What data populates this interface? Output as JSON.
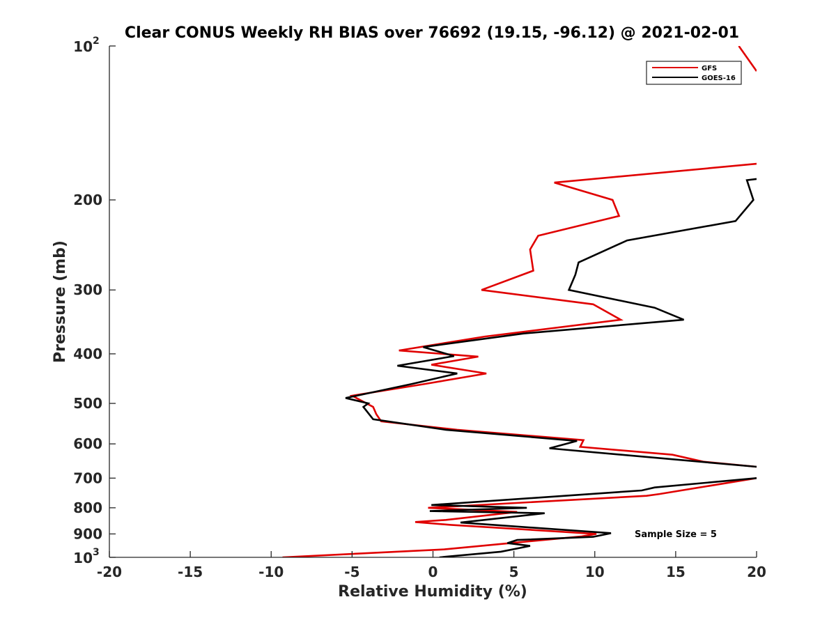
{
  "chart_data": {
    "type": "line",
    "title": "Clear CONUS Weekly RH BIAS over 76692 (19.15, -96.12) @ 2021-02-01",
    "xlabel": "Relative Humidity (%)",
    "ylabel": "Pressure (mb)",
    "xlim": [
      -20,
      20
    ],
    "ylim": [
      100,
      1000
    ],
    "yscale": "log",
    "y_reversed": true,
    "x_ticks": [
      -20,
      -15,
      -10,
      -5,
      0,
      5,
      10,
      15,
      20
    ],
    "x_tick_labels": [
      "-20",
      "-15",
      "-10",
      "-5",
      "0",
      "5",
      "10",
      "15",
      "20"
    ],
    "y_ticks": [
      200,
      300,
      400,
      500,
      600,
      700,
      800,
      900
    ],
    "y_tick_labels": [
      "200",
      "300",
      "400",
      "500",
      "600",
      "700",
      "800",
      "900"
    ],
    "y_pow_ticks": [
      {
        "value": 100,
        "base": "10",
        "exp": "2"
      },
      {
        "value": 1000,
        "base": "10",
        "exp": "3"
      }
    ],
    "grid": false,
    "legend_position": "top-right",
    "annotation": "Sample Size = 5",
    "series": [
      {
        "name": "GFS",
        "color": "#e00000",
        "segments": [
          [
            [
              18.9,
              100
            ],
            [
              20.0,
              112
            ]
          ],
          [
            [
              20.0,
              170
            ],
            [
              7.5,
              185
            ],
            [
              11.1,
              200
            ],
            [
              11.5,
              215
            ],
            [
              6.5,
              235
            ],
            [
              6.0,
              250
            ],
            [
              6.2,
              275
            ],
            [
              3.0,
              300
            ],
            [
              9.9,
              320
            ],
            [
              11.6,
              343
            ],
            [
              3.2,
              370
            ],
            [
              -2.1,
              394
            ],
            [
              2.8,
              405
            ],
            [
              -0.1,
              420
            ],
            [
              3.3,
              437
            ],
            [
              -0.5,
              458
            ],
            [
              -5.0,
              483
            ],
            [
              -3.7,
              508
            ],
            [
              -3.5,
              525
            ],
            [
              -3.2,
              542
            ],
            [
              1.5,
              563
            ],
            [
              9.3,
              590
            ],
            [
              9.1,
              608
            ],
            [
              14.8,
              630
            ],
            [
              16.7,
              650
            ],
            [
              20.0,
              665
            ]
          ],
          [
            [
              20.0,
              700
            ],
            [
              14.0,
              752
            ],
            [
              13.2,
              758
            ],
            [
              -0.3,
              800
            ],
            [
              5.2,
              815
            ],
            [
              0.8,
              845
            ],
            [
              -1.1,
              853
            ],
            [
              1.1,
              864
            ],
            [
              10.1,
              900
            ],
            [
              9.2,
              910
            ],
            [
              0.7,
              965
            ],
            [
              -9.3,
              1000
            ]
          ]
        ]
      },
      {
        "name": "GOES-16",
        "color": "#000000",
        "segments": [
          [
            [
              20.0,
              182
            ],
            [
              19.4,
              183
            ],
            [
              19.8,
              200
            ],
            [
              18.7,
              220
            ],
            [
              12.0,
              240
            ],
            [
              9.0,
              265
            ],
            [
              8.8,
              280
            ],
            [
              8.4,
              300
            ],
            [
              13.7,
              325
            ],
            [
              15.5,
              343
            ],
            [
              5.6,
              365
            ],
            [
              -0.6,
              388
            ],
            [
              1.3,
              404
            ],
            [
              -2.2,
              422
            ],
            [
              1.5,
              437
            ],
            [
              -1.3,
              458
            ],
            [
              -5.4,
              488
            ],
            [
              -4.0,
              500
            ],
            [
              -4.3,
              508
            ],
            [
              -3.7,
              537
            ],
            [
              0.8,
              563
            ],
            [
              8.9,
              592
            ],
            [
              7.2,
              612
            ],
            [
              20.0,
              665
            ]
          ],
          [
            [
              20.0,
              700
            ],
            [
              13.7,
              730
            ],
            [
              12.9,
              740
            ],
            [
              -0.1,
              790
            ],
            [
              5.8,
              800
            ],
            [
              1.8,
              808
            ],
            [
              -0.2,
              812
            ],
            [
              6.9,
              820
            ],
            [
              1.7,
              855
            ],
            [
              11.0,
              897
            ],
            [
              9.9,
              912
            ],
            [
              5.2,
              925
            ],
            [
              4.6,
              938
            ],
            [
              6.0,
              950
            ],
            [
              4.2,
              975
            ],
            [
              0.4,
              1000
            ]
          ]
        ]
      }
    ]
  }
}
